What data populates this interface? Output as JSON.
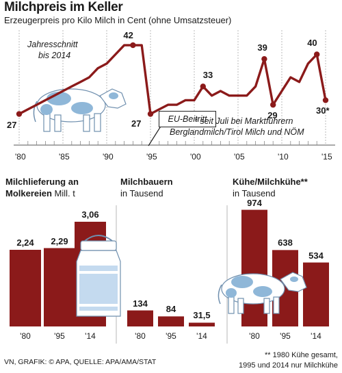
{
  "header": {
    "title": "Milchpreis im Keller",
    "subtitle": "Erzeugerpreis pro Kilo Milch in Cent (ohne Umsatzsteuer)"
  },
  "annotations": {
    "average_line1": "Jahresschnitt",
    "average_line2": "bis 2014",
    "eu_accession": "EU-Beitritt",
    "footnote_line1": "* seit Juli bei Marktführern",
    "footnote_line2": "Berglandmilch/Tirol Milch und NÖM"
  },
  "colors": {
    "series": "#8b1a1a",
    "grid": "#b9b9b9",
    "cow_spots": "#8fb7d8",
    "panel_separator": "#cfcfcf"
  },
  "icons": [
    "cow-illustration",
    "milk-can-illustration"
  ],
  "chart_data": [
    {
      "type": "line",
      "x": [
        1980,
        1981,
        1982,
        1983,
        1984,
        1985,
        1986,
        1987,
        1988,
        1989,
        1990,
        1991,
        1992,
        1993,
        1994,
        1995,
        1996,
        1997,
        1998,
        1999,
        2000,
        2001,
        2002,
        2003,
        2004,
        2005,
        2006,
        2007,
        2008,
        2009,
        2010,
        2011,
        2012,
        2013,
        2014,
        2015
      ],
      "values": [
        27,
        28,
        29,
        30,
        31,
        32,
        33,
        34,
        35,
        37,
        38,
        40,
        42,
        42,
        42,
        27,
        28,
        29,
        29,
        30,
        30,
        33,
        31,
        32,
        31,
        31,
        31,
        33,
        39,
        29,
        32,
        35,
        34,
        38,
        40,
        30
      ],
      "point_labels": [
        {
          "x": 1980,
          "y": 27,
          "text": "27"
        },
        {
          "x": 1993,
          "y": 42,
          "text": "42"
        },
        {
          "x": 1995,
          "y": 27,
          "text": "27"
        },
        {
          "x": 2001,
          "y": 33,
          "text": "33"
        },
        {
          "x": 2008,
          "y": 39,
          "text": "39"
        },
        {
          "x": 2009,
          "y": 29,
          "text": "29"
        },
        {
          "x": 2014,
          "y": 40,
          "text": "40"
        },
        {
          "x": 2015,
          "y": 30,
          "text": "30*"
        }
      ],
      "xticks": [
        "'80",
        "'85",
        "'90",
        "'95",
        "'00",
        "'05",
        "'10",
        "'15"
      ],
      "xtick_years": [
        1980,
        1985,
        1990,
        1995,
        2000,
        2005,
        2010,
        2015
      ],
      "ylim": [
        22,
        45
      ],
      "grid": "vertical"
    },
    {
      "type": "bar",
      "title": "Milchlieferung an Molkereien",
      "unit": "Mill. t",
      "categories": [
        "'80",
        "'95",
        "'14"
      ],
      "values": [
        2.24,
        2.29,
        3.06
      ],
      "labels": [
        "2,24",
        "2,29",
        "3,06"
      ],
      "ylim": [
        0,
        3.5
      ]
    },
    {
      "type": "bar",
      "title": "Milchbauern",
      "unit": "in Tausend",
      "categories": [
        "'80",
        "'95",
        "'14"
      ],
      "values": [
        134,
        84,
        31.5
      ],
      "labels": [
        "134",
        "84",
        "31,5"
      ],
      "ylim": [
        0,
        1000
      ]
    },
    {
      "type": "bar",
      "title": "Kühe/Milchkühe**",
      "unit": "in Tausend",
      "categories": [
        "'80",
        "'95",
        "'14"
      ],
      "values": [
        974,
        638,
        534
      ],
      "labels": [
        "974",
        "638",
        "534"
      ],
      "ylim": [
        0,
        1000
      ]
    }
  ],
  "footer": {
    "source": "VN, GRAFIK: © APA, QUELLE: APA/AMA/STAT",
    "footnote_line1": "** 1980 Kühe gesamt,",
    "footnote_line2": "1995 und 2014 nur Milchkühe"
  }
}
